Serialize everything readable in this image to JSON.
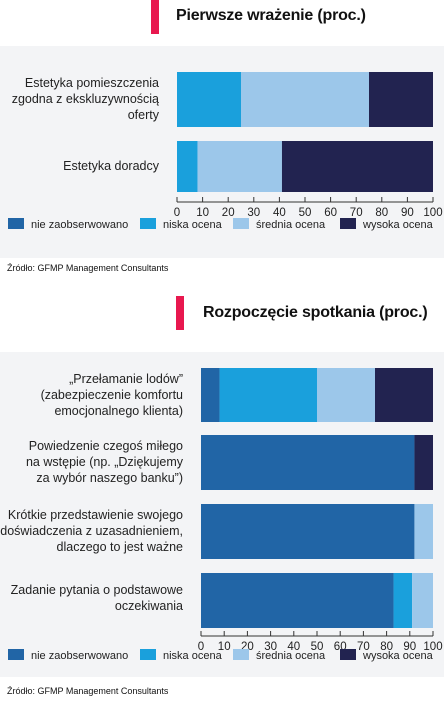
{
  "colors": {
    "accent": "#e8184f",
    "nie_zaobserwowano": "#2165a6",
    "niska_ocena": "#1aa0dc",
    "srednia_ocena": "#9cc7ea",
    "wysoka_ocena": "#222350",
    "panel_bg": "#f3f4f6"
  },
  "legend_labels": [
    "nie zaobserwowano",
    "niska ocena",
    "średnia ocena",
    "wysoka ocena"
  ],
  "chart_data": [
    {
      "type": "bar",
      "orientation": "horizontal",
      "stacked": true,
      "title": "Pierwsze wrażenie (proc.)",
      "source": "Źródło: GFMP Management Consultants",
      "categories": [
        [
          "Estetyka pomieszczenia",
          "zgodna z ekskluzywnością",
          "oferty"
        ],
        [
          "Estetyka doradcy"
        ]
      ],
      "series": [
        {
          "name": "nie zaobserwowano",
          "values": [
            0,
            0
          ]
        },
        {
          "name": "niska ocena",
          "values": [
            25,
            8
          ]
        },
        {
          "name": "średnia ocena",
          "values": [
            50,
            33
          ]
        },
        {
          "name": "wysoka ocena",
          "values": [
            25,
            59
          ]
        }
      ],
      "xlim": [
        0,
        100
      ],
      "xticks": [
        "0",
        "10",
        "20",
        "30",
        "40",
        "50",
        "60",
        "70",
        "80",
        "90",
        "100"
      ],
      "legend": "bottom"
    },
    {
      "type": "bar",
      "orientation": "horizontal",
      "stacked": true,
      "title": "Rozpoczęcie spotkania (proc.)",
      "source": "Źródło: GFMP Management Consultants",
      "categories": [
        [
          "„Przełamanie lodów”",
          "(zabezpieczenie komfortu",
          "emocjonalnego klienta)"
        ],
        [
          "Powiedzenie czegoś miłego",
          "na wstępie (np. „Dziękujemy",
          "za wybór naszego banku”)"
        ],
        [
          "Krótkie przedstawienie swojego",
          "doświadczenia z uzasadnieniem,",
          "dlaczego to jest ważne"
        ],
        [
          "Zadanie pytania o podstawowe",
          "oczekiwania"
        ]
      ],
      "series": [
        {
          "name": "nie zaobserwowano",
          "values": [
            8,
            92,
            92,
            83
          ]
        },
        {
          "name": "niska ocena",
          "values": [
            42,
            0,
            0,
            8
          ]
        },
        {
          "name": "średnia ocena",
          "values": [
            25,
            0,
            8,
            9
          ]
        },
        {
          "name": "wysoka ocena",
          "values": [
            25,
            8,
            0,
            0
          ]
        }
      ],
      "xlim": [
        0,
        100
      ],
      "xticks": [
        "0",
        "10",
        "20",
        "30",
        "40",
        "50",
        "60",
        "70",
        "80",
        "90",
        "100"
      ],
      "legend": "bottom"
    }
  ]
}
